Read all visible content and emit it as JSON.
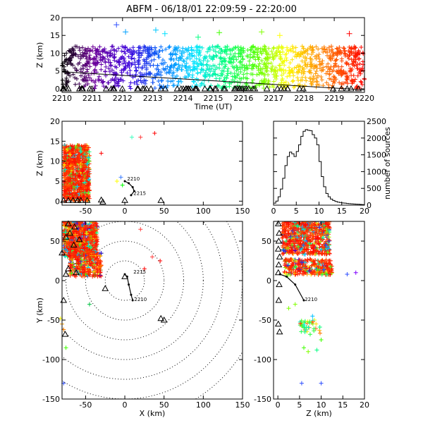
{
  "figure": {
    "title": "ABFM - 06/18/01 22:09:59 - 22:20:00"
  },
  "chart_data": [
    {
      "id": "time_height",
      "type": "scatter",
      "xlabel": "Time (UT)",
      "ylabel": "Z (km)",
      "xlim": [
        2210,
        2220
      ],
      "ylim": [
        -1,
        20
      ],
      "x_ticks": [
        "2210",
        "2211",
        "2212",
        "2213",
        "2214",
        "2215",
        "2216",
        "2217",
        "2218",
        "2219",
        "2220"
      ],
      "y_ticks": [
        "0",
        "5",
        "10",
        "15",
        "20"
      ],
      "bulk_band": {
        "z_min": 0,
        "z_max": 12,
        "color_by": "time"
      },
      "outliers": [
        {
          "x": 2211.8,
          "y": 18,
          "color": "#3050ff"
        },
        {
          "x": 2212.1,
          "y": 16,
          "color": "#00a0ff"
        },
        {
          "x": 2213.1,
          "y": 16.5,
          "color": "#00c8ff"
        },
        {
          "x": 2213.4,
          "y": 15.5,
          "color": "#00e0ff"
        },
        {
          "x": 2214.5,
          "y": 14.5,
          "color": "#00ff80"
        },
        {
          "x": 2215.2,
          "y": 15.8,
          "color": "#40ff00"
        },
        {
          "x": 2216.6,
          "y": 16.0,
          "color": "#80ff00"
        },
        {
          "x": 2217.2,
          "y": 15.0,
          "color": "#ffff00"
        },
        {
          "x": 2219.5,
          "y": 15.5,
          "color": "#ff0000"
        }
      ],
      "trend_line": {
        "x": [
          2210,
          2220
        ],
        "y": [
          4.8,
          -0.3
        ]
      },
      "triangle_level": 0
    },
    {
      "id": "x_height",
      "type": "scatter",
      "ylabel": "Z (km)",
      "xlim": [
        -80,
        150
      ],
      "ylim": [
        -1,
        20
      ],
      "x_ticks": [
        "-50",
        "0",
        "50",
        "100",
        "150"
      ],
      "y_ticks": [
        "0",
        "5",
        "10",
        "15",
        "20"
      ],
      "cluster": {
        "x": [
          -78,
          -45
        ],
        "z": [
          0,
          14
        ]
      },
      "outliers": [
        {
          "x": -5,
          "y": 6.0,
          "color": "#4080ff"
        },
        {
          "x": 9,
          "y": 16.0,
          "color": "#40ffc0"
        },
        {
          "x": 20,
          "y": 16.0,
          "color": "#ff4040"
        },
        {
          "x": 38,
          "y": 17.0,
          "color": "#ff0000"
        },
        {
          "x": -30,
          "y": 12.0,
          "color": "#ff0000"
        },
        {
          "x": -10,
          "y": 5.0,
          "color": "#ffff00"
        },
        {
          "x": -3,
          "y": 4.0,
          "color": "#00ff00"
        }
      ],
      "track": {
        "x": [
          0,
          5,
          10,
          12,
          8
        ],
        "y": [
          5.0,
          4.5,
          3.5,
          2.5,
          1.5
        ]
      },
      "track_labels": [
        {
          "text": "2210",
          "x": 3,
          "y": 5.2
        },
        {
          "text": "2215",
          "x": 11,
          "y": 1.6
        }
      ],
      "triangles": [
        {
          "x": -78,
          "y": 0.2
        },
        {
          "x": -72,
          "y": 0.2
        },
        {
          "x": -66,
          "y": 0.2
        },
        {
          "x": -60,
          "y": 0.2
        },
        {
          "x": -56,
          "y": 0.2
        },
        {
          "x": -48,
          "y": 0.2
        },
        {
          "x": -30,
          "y": 0.3
        },
        {
          "x": -28,
          "y": -0.2
        },
        {
          "x": 0,
          "y": 0.2
        },
        {
          "x": 46,
          "y": 0.2
        }
      ]
    },
    {
      "id": "histogram",
      "type": "bar",
      "ylabel": "number of sources",
      "xlim": [
        0,
        20
      ],
      "ylim": [
        0,
        2500
      ],
      "x_ticks": [
        "0",
        "5",
        "10",
        "15",
        "20"
      ],
      "y_ticks": [
        "0",
        "500",
        "1000",
        "1500",
        "2000",
        "2500"
      ],
      "bin_width": 0.5,
      "bins_start": 0,
      "values": [
        60,
        120,
        250,
        480,
        800,
        1180,
        1450,
        1580,
        1530,
        1450,
        1600,
        1800,
        2050,
        2200,
        2250,
        2230,
        2220,
        2100,
        2000,
        1800,
        1300,
        850,
        550,
        350,
        250,
        180,
        140,
        110,
        90,
        80,
        65,
        60,
        50,
        45,
        40,
        35,
        30,
        25,
        20,
        15
      ]
    },
    {
      "id": "plan_view",
      "type": "scatter",
      "xlabel": "X (km)",
      "ylabel": "Y (km)",
      "xlim": [
        -80,
        150
      ],
      "ylim": [
        -150,
        75
      ],
      "x_ticks": [
        "-50",
        "0",
        "50",
        "100",
        "150"
      ],
      "y_ticks": [
        "-150",
        "-100",
        "-50",
        "0",
        "50"
      ],
      "range_rings_km": [
        25,
        50,
        75,
        100,
        125,
        150,
        175
      ],
      "cluster": {
        "x": [
          -78,
          -35
        ],
        "y": [
          0,
          75
        ]
      },
      "outliers": [
        {
          "x": -78,
          "y": -130,
          "color": "#3050ff"
        },
        {
          "x": -80,
          "y": -55,
          "color": "#ffa000"
        },
        {
          "x": -78,
          "y": -62,
          "color": "#ff8000"
        },
        {
          "x": -75,
          "y": -85,
          "color": "#40ff00"
        },
        {
          "x": -82,
          "y": -48,
          "color": "#ffff00"
        },
        {
          "x": -45,
          "y": -30,
          "color": "#00c040"
        },
        {
          "x": 20,
          "y": 65,
          "color": "#ff4040"
        },
        {
          "x": 35,
          "y": 30,
          "color": "#ff4040"
        },
        {
          "x": 45,
          "y": 25,
          "color": "#ff0000"
        },
        {
          "x": 25,
          "y": 15,
          "color": "#ff0000"
        }
      ],
      "track": {
        "x": [
          10,
          8,
          5,
          3,
          0
        ],
        "y": [
          -25,
          -18,
          -5,
          5,
          8
        ]
      },
      "track_labels": [
        {
          "text": "2215",
          "x": 11,
          "y": 9
        },
        {
          "text": "2210",
          "x": 12,
          "y": -26
        }
      ],
      "triangles": [
        {
          "x": -72,
          "y": 72
        },
        {
          "x": -64,
          "y": 68
        },
        {
          "x": -70,
          "y": 60
        },
        {
          "x": -58,
          "y": 52
        },
        {
          "x": -75,
          "y": 55
        },
        {
          "x": -65,
          "y": 45
        },
        {
          "x": -80,
          "y": 35
        },
        {
          "x": -72,
          "y": 15
        },
        {
          "x": -62,
          "y": 10
        },
        {
          "x": -75,
          "y": 8
        },
        {
          "x": -78,
          "y": -25
        },
        {
          "x": -76,
          "y": -68
        },
        {
          "x": -25,
          "y": -10
        },
        {
          "x": 0,
          "y": 5
        },
        {
          "x": 46,
          "y": -48
        },
        {
          "x": 50,
          "y": -50
        }
      ]
    },
    {
      "id": "height_y",
      "type": "scatter",
      "xlabel": "Z (km)",
      "xlim": [
        -1,
        20
      ],
      "ylim": [
        -150,
        75
      ],
      "x_ticks": [
        "0",
        "5",
        "10",
        "15",
        "20"
      ],
      "y_ticks": [
        "-150",
        "-100",
        "-50",
        "0",
        "50"
      ],
      "cluster": {
        "z": [
          0,
          14
        ],
        "y": [
          0,
          75
        ]
      },
      "outliers": [
        {
          "x": 5.5,
          "y": -130,
          "color": "#3050ff"
        },
        {
          "x": 10,
          "y": -130,
          "color": "#3050ff"
        },
        {
          "x": 4,
          "y": -30,
          "color": "#80ff00"
        },
        {
          "x": 2.5,
          "y": -35,
          "color": "#80ff00"
        },
        {
          "x": 8,
          "y": -45,
          "color": "#00c0ff"
        },
        {
          "x": 10,
          "y": -75,
          "color": "#40ff00"
        },
        {
          "x": 7,
          "y": -90,
          "color": "#80ff00"
        },
        {
          "x": 6,
          "y": -85,
          "color": "#40ff00"
        },
        {
          "x": 9,
          "y": -88,
          "color": "#00ff80"
        },
        {
          "x": 16,
          "y": 8,
          "color": "#3050ff"
        },
        {
          "x": 18,
          "y": 10,
          "color": "#8000ff"
        }
      ],
      "track": {
        "x": [
          0.5,
          2,
          4,
          6
        ],
        "y": [
          8,
          5,
          -5,
          -25
        ]
      },
      "track_labels": [
        {
          "text": "2210",
          "x": 6.2,
          "y": -26
        }
      ],
      "triangles": [
        {
          "x": 0.1,
          "y": 72
        },
        {
          "x": 0.3,
          "y": 60
        },
        {
          "x": 0.2,
          "y": 50
        },
        {
          "x": 0.1,
          "y": 40
        },
        {
          "x": 0.4,
          "y": 30
        },
        {
          "x": 0.2,
          "y": 20
        },
        {
          "x": 0.1,
          "y": 10
        },
        {
          "x": 0.3,
          "y": -5
        },
        {
          "x": 0.2,
          "y": -25
        },
        {
          "x": 0.1,
          "y": -55
        },
        {
          "x": 0.4,
          "y": -65
        }
      ]
    }
  ]
}
